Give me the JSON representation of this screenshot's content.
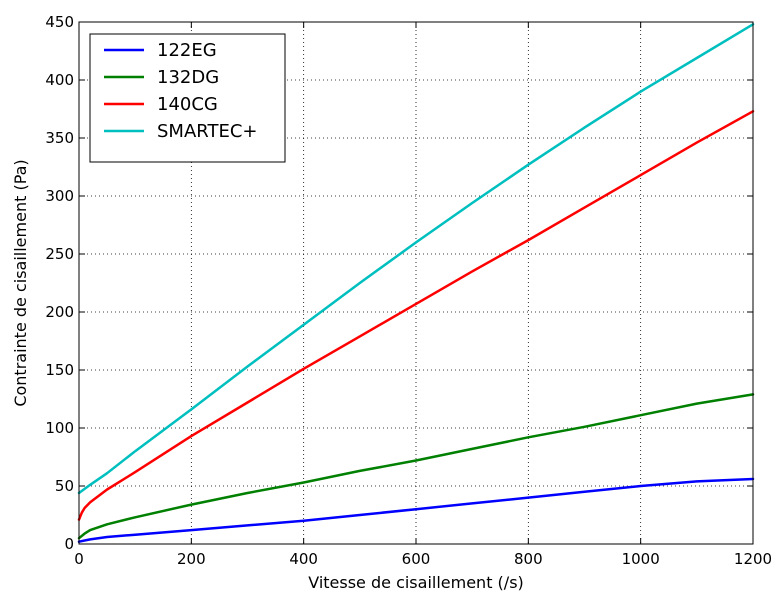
{
  "chart_data": {
    "type": "line",
    "title": "",
    "xlabel": "Vitesse de cisaillement (/s)",
    "ylabel": "Contrainte de cisaillement (Pa)",
    "xlim": [
      0,
      1200
    ],
    "ylim": [
      0,
      450
    ],
    "xticks": [
      0,
      200,
      400,
      600,
      800,
      1000,
      1200
    ],
    "yticks": [
      0,
      50,
      100,
      150,
      200,
      250,
      300,
      350,
      400,
      450
    ],
    "grid": true,
    "grid_style": "dotted",
    "legend_position": "top-left",
    "series": [
      {
        "name": "122EG",
        "color": "#0000ff",
        "x": [
          0,
          10,
          20,
          50,
          100,
          200,
          300,
          400,
          500,
          600,
          700,
          800,
          900,
          1000,
          1100,
          1200
        ],
        "y": [
          2,
          3,
          4,
          6,
          8,
          12,
          16,
          20,
          25,
          30,
          35,
          40,
          45,
          50,
          54,
          56
        ]
      },
      {
        "name": "132DG",
        "color": "#008000",
        "x": [
          0,
          10,
          20,
          50,
          100,
          200,
          300,
          400,
          500,
          600,
          700,
          800,
          900,
          1000,
          1100,
          1200
        ],
        "y": [
          5,
          9,
          12,
          17,
          23,
          34,
          44,
          53,
          63,
          72,
          82,
          92,
          101,
          111,
          121,
          129
        ]
      },
      {
        "name": "140CG",
        "color": "#ff0000",
        "x": [
          0,
          5,
          10,
          20,
          50,
          100,
          200,
          300,
          400,
          500,
          600,
          700,
          800,
          900,
          1000,
          1100,
          1200
        ],
        "y": [
          21,
          27,
          31,
          36,
          47,
          62,
          93,
          122,
          151,
          179,
          207,
          235,
          262,
          290,
          318,
          346,
          373
        ]
      },
      {
        "name": "SMARTEC+",
        "color": "#00bfbf",
        "x": [
          0,
          20,
          50,
          100,
          200,
          300,
          400,
          500,
          600,
          700,
          800,
          900,
          1000,
          1100,
          1200
        ],
        "y": [
          44,
          51,
          61,
          80,
          116,
          153,
          189,
          225,
          260,
          294,
          327,
          359,
          390,
          419,
          448
        ]
      }
    ]
  }
}
